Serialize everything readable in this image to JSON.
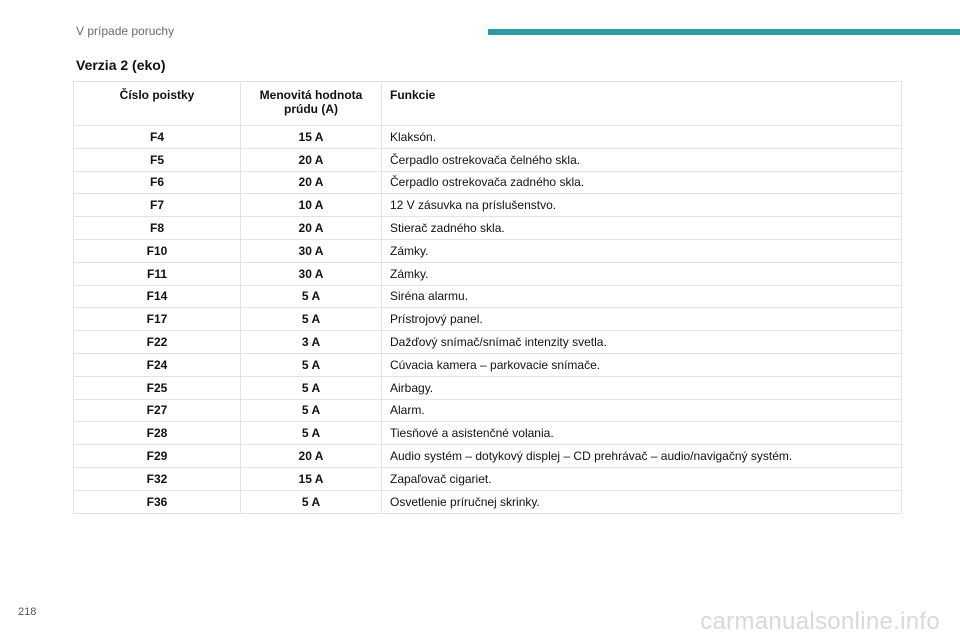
{
  "header": {
    "section_label": "V prípade poruchy",
    "accent_color": "#2a9d9f"
  },
  "heading": "Verzia 2 (eko)",
  "table": {
    "columns": [
      "Číslo poistky",
      "Menovitá hodnota prúdu (A)",
      "Funkcie"
    ],
    "rows": [
      [
        "F4",
        "15 A",
        "Klaksón."
      ],
      [
        "F5",
        "20 A",
        "Čerpadlo ostrekovača čelného skla."
      ],
      [
        "F6",
        "20 A",
        "Čerpadlo ostrekovača zadného skla."
      ],
      [
        "F7",
        "10 A",
        "12 V zásuvka na príslušenstvo."
      ],
      [
        "F8",
        "20 A",
        "Stierač zadného skla."
      ],
      [
        "F10",
        "30 A",
        "Zámky."
      ],
      [
        "F11",
        "30 A",
        "Zámky."
      ],
      [
        "F14",
        "5 A",
        "Siréna alarmu."
      ],
      [
        "F17",
        "5 A",
        "Prístrojový panel."
      ],
      [
        "F22",
        "3 A",
        "Dažďový snímač/snímač intenzity svetla."
      ],
      [
        "F24",
        "5 A",
        "Cúvacia kamera – parkovacie snímače."
      ],
      [
        "F25",
        "5 A",
        "Airbagy."
      ],
      [
        "F27",
        "5 A",
        "Alarm."
      ],
      [
        "F28",
        "5 A",
        "Tiesňové a asistenčné volania."
      ],
      [
        "F29",
        "20 A",
        "Audio systém – dotykový displej – CD prehrávač – audio/navigačný systém."
      ],
      [
        "F32",
        "15 A",
        "Zapaľovač cigariet."
      ],
      [
        "F36",
        "5 A",
        "Osvetlenie príručnej skrinky."
      ]
    ]
  },
  "footer": {
    "page_number": "218",
    "watermark": "carmanualsonline.info"
  }
}
